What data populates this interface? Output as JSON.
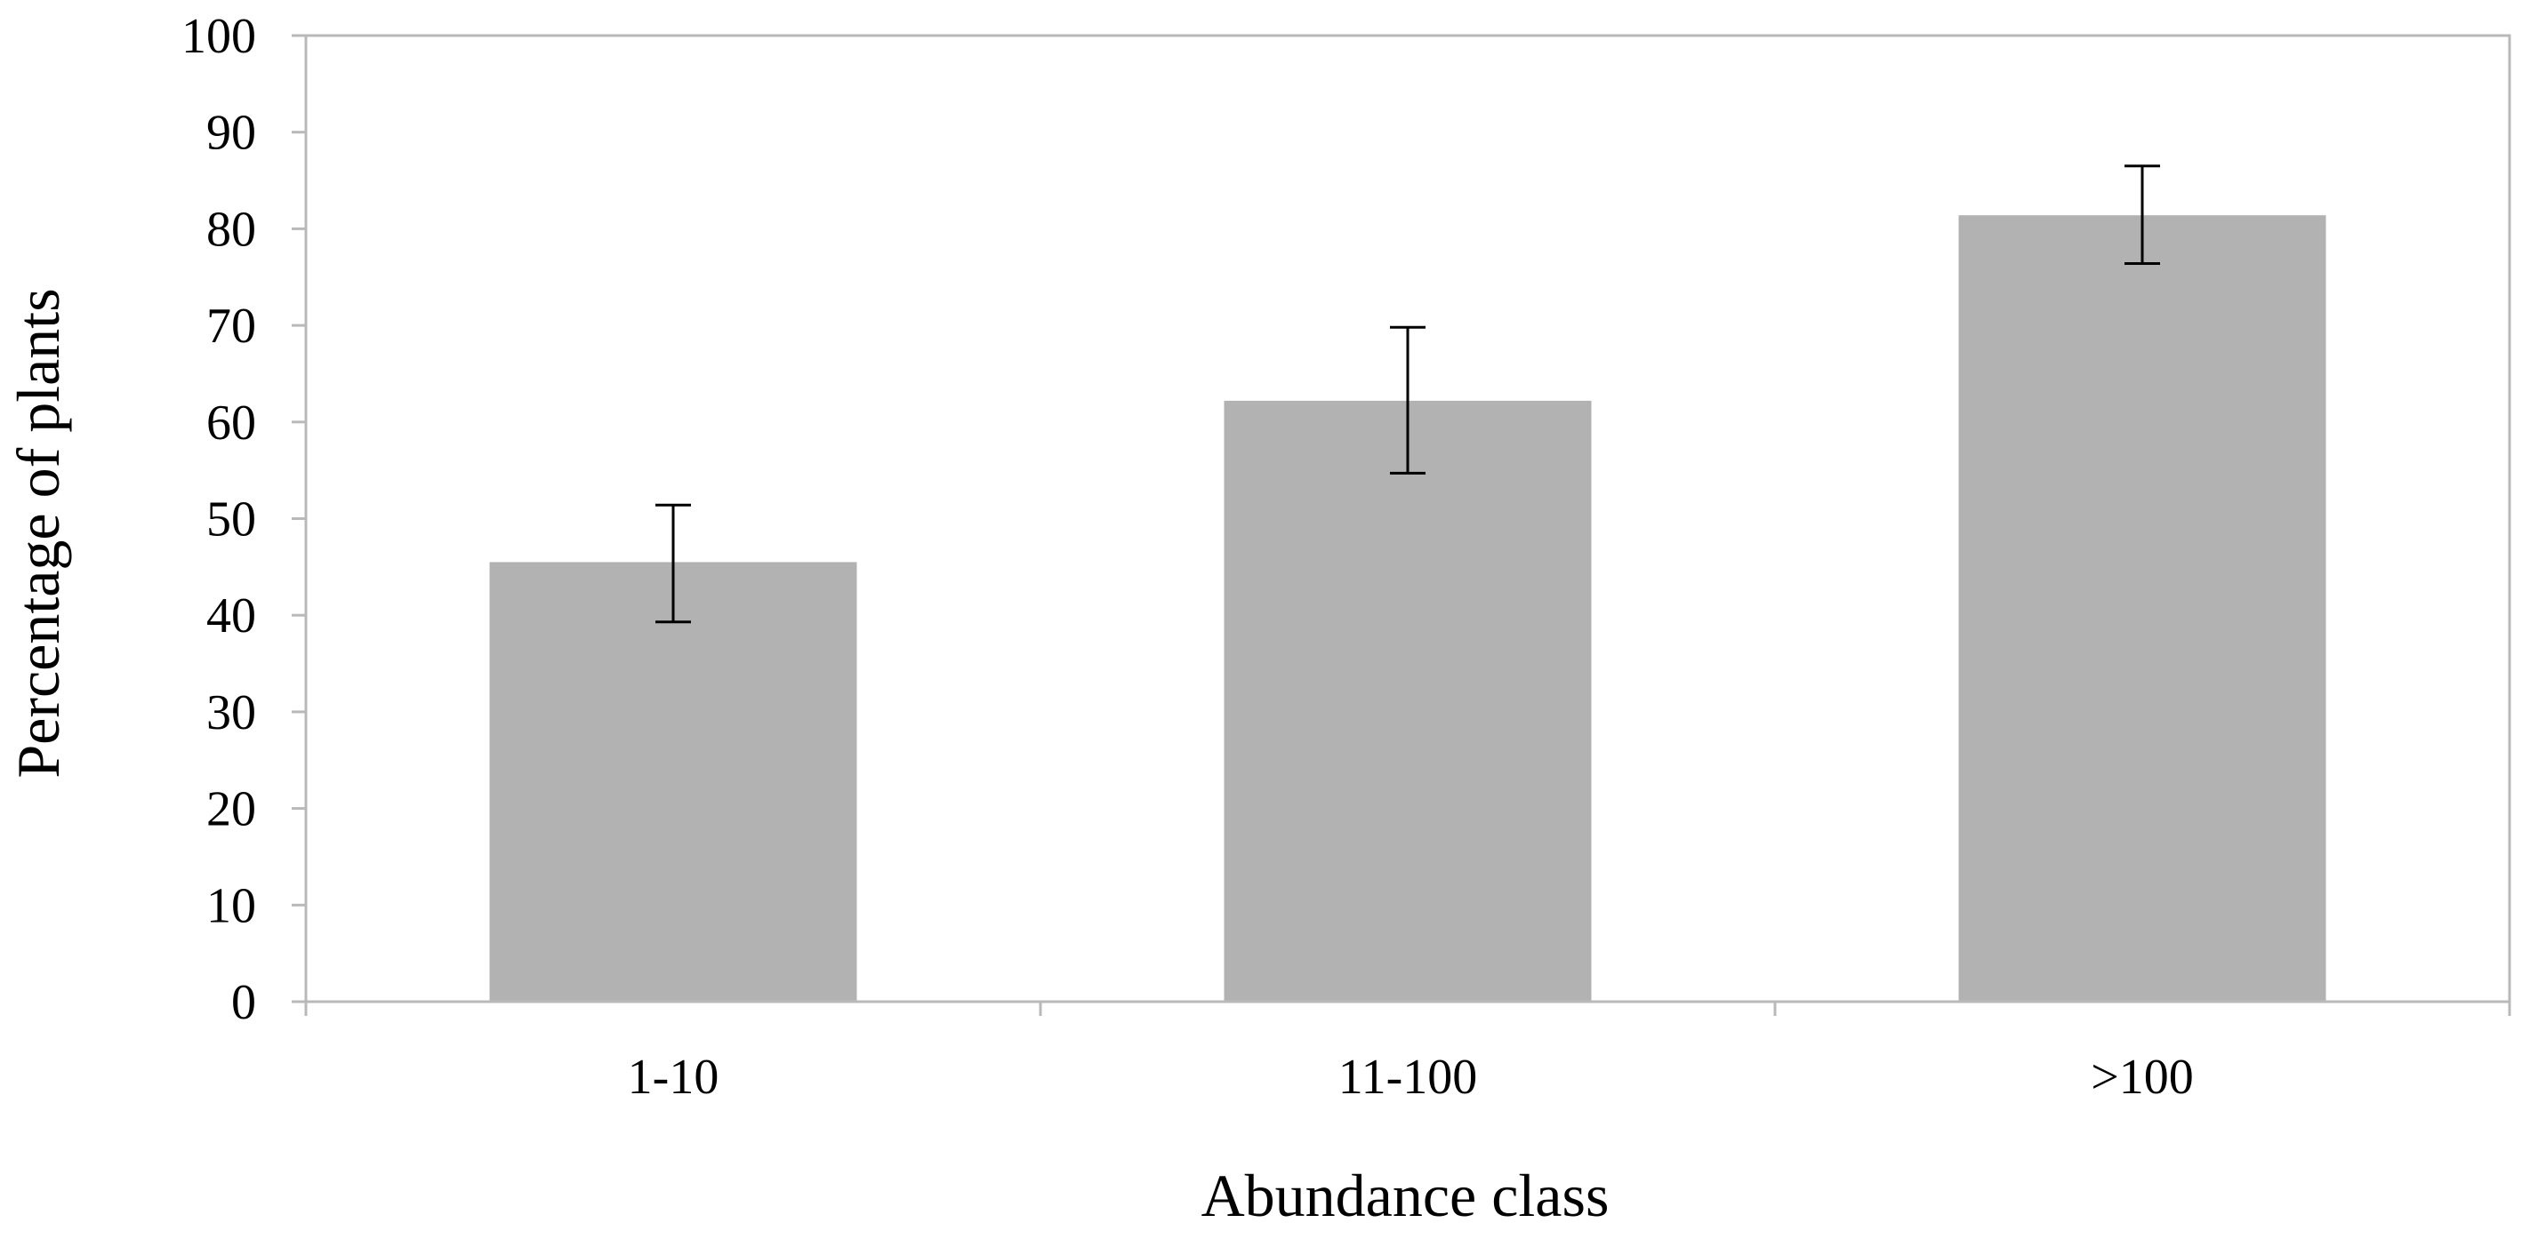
{
  "chart_data": {
    "type": "bar",
    "title": "",
    "xlabel": "Abundance class",
    "ylabel": "Percentage of plants",
    "categories": [
      "1-10",
      "11-100",
      ">100"
    ],
    "values": [
      45.5,
      62.2,
      81.4
    ],
    "error_low": [
      39.3,
      54.7,
      76.4
    ],
    "error_high": [
      51.4,
      69.8,
      86.5
    ],
    "ylim": [
      0,
      100
    ],
    "yticks": [
      0,
      10,
      20,
      30,
      40,
      50,
      60,
      70,
      80,
      90,
      100
    ],
    "ytick_labels": [
      "0",
      "10",
      "20",
      "30",
      "40",
      "50",
      "60",
      "70",
      "80",
      "90",
      "100"
    ],
    "grid": false,
    "legend": "none",
    "bar_color": "#b2b2b2",
    "error_bar_color": "#000000",
    "axis_color": "#b9b9b9"
  }
}
